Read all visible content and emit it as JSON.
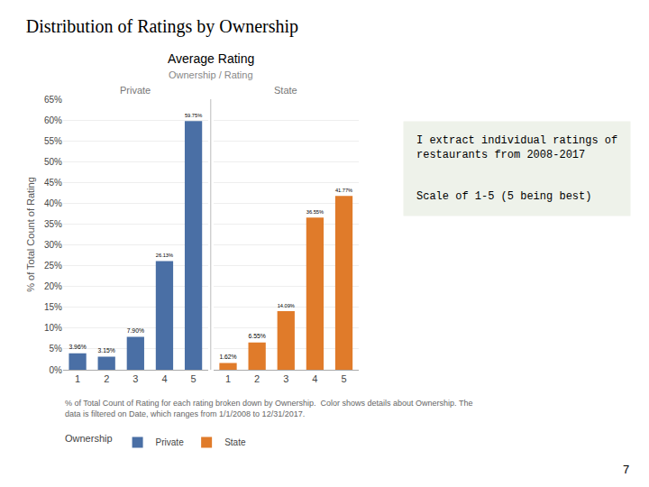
{
  "title": "Distribution of Ratings by Ownership",
  "annotations": [
    "I extract individual ratings of\nrestaurants from 2008-2017",
    "Scale of 1-5 (5 being best)",
    "% of Total Count of Rating for each rating broken down by Ownership.  Color shows details about Ownership. The\ndata is filtered on Date, which ranges from 1/1/2008 to 12/31/2017.",
    "7"
  ],
  "chart_data": {
    "type": "bar",
    "title": "Average Rating",
    "subtitle": "Ownership / Rating",
    "categories": [
      "1",
      "2",
      "3",
      "4",
      "5"
    ],
    "ylabel": "% of Total Count of Rating",
    "ylim": [
      0,
      65
    ],
    "yticks": [
      {
        "value": 0,
        "label": "0%"
      },
      {
        "value": 5,
        "label": "5%"
      },
      {
        "value": 10,
        "label": "10%"
      },
      {
        "value": 15,
        "label": "15%"
      },
      {
        "value": 20,
        "label": "20%"
      },
      {
        "value": 25,
        "label": "25%"
      },
      {
        "value": 30,
        "label": "30%"
      },
      {
        "value": 35,
        "label": "35%"
      },
      {
        "value": 40,
        "label": "40%"
      },
      {
        "value": 45,
        "label": "45%"
      },
      {
        "value": 50,
        "label": "50%"
      },
      {
        "value": 55,
        "label": "55%"
      },
      {
        "value": 60,
        "label": "60%"
      },
      {
        "value": 65,
        "label": "65%"
      }
    ],
    "grid": true,
    "data_labels": true,
    "legend": "lower left",
    "legend_title": "Ownership",
    "series": [
      {
        "name": "Private",
        "color": "#4a6fa5",
        "values": [
          3.96,
          3.15,
          7.9,
          26.13,
          59.75
        ],
        "value_labels": [
          "3.96%",
          "3.15%",
          "7.90%",
          "26.13%",
          "59.75%"
        ]
      },
      {
        "name": "State",
        "color": "#e07b2a",
        "values": [
          1.62,
          6.55,
          14.09,
          36.55,
          41.77
        ],
        "value_labels": [
          "1.62%",
          "6.55%",
          "14.09%",
          "36.55%",
          "41.77%"
        ]
      }
    ]
  }
}
